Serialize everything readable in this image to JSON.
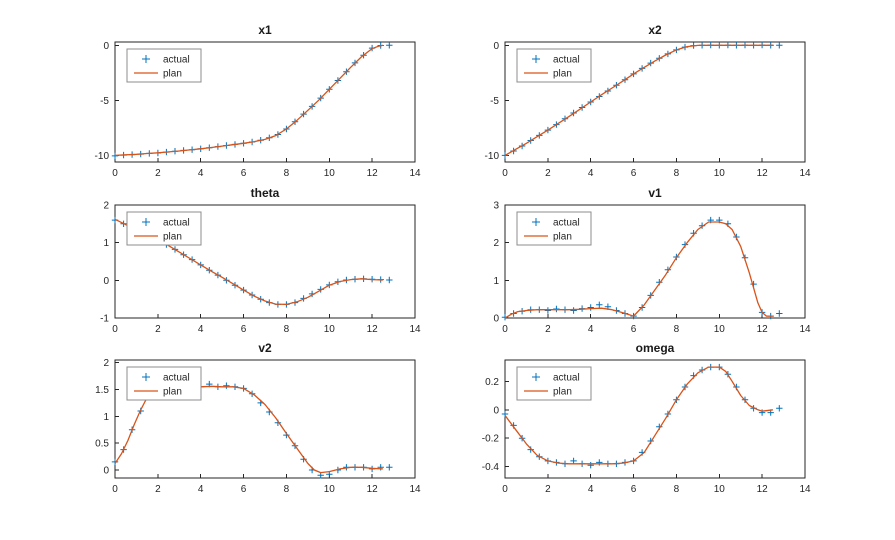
{
  "figure": {
    "background": "#ffffff"
  },
  "colors": {
    "actual": "#0072BD",
    "plan": "#D95319",
    "axis": "#262626",
    "legend_border": "#8c8c8c",
    "title": "#1a1a1a"
  },
  "chart_data": [
    {
      "type": "line",
      "title": "x1",
      "xlim": [
        0,
        14
      ],
      "ylim": [
        -10.6,
        0.3
      ],
      "xticks": [
        0,
        2,
        4,
        6,
        8,
        10,
        12,
        14
      ],
      "yticks": [
        -10,
        -5,
        0
      ],
      "legend": [
        "actual",
        "plan"
      ],
      "legend_position": "upper-left",
      "grid": false,
      "series": [
        {
          "name": "actual",
          "style": "plus",
          "color": "#0072BD",
          "x": [
            0,
            0.4,
            0.8,
            1.2,
            1.6,
            2,
            2.4,
            2.8,
            3.2,
            3.6,
            4,
            4.4,
            4.8,
            5.2,
            5.6,
            6,
            6.4,
            6.8,
            7.2,
            7.6,
            8,
            8.4,
            8.8,
            9.2,
            9.6,
            10,
            10.4,
            10.8,
            11.2,
            11.6,
            12,
            12.4,
            12.8
          ],
          "y": [
            -10.05,
            -9.97,
            -9.93,
            -9.88,
            -9.82,
            -9.78,
            -9.7,
            -9.62,
            -9.55,
            -9.48,
            -9.4,
            -9.3,
            -9.2,
            -9.1,
            -9.0,
            -8.9,
            -8.78,
            -8.62,
            -8.4,
            -8.1,
            -7.6,
            -6.95,
            -6.25,
            -5.55,
            -4.8,
            -4.0,
            -3.2,
            -2.4,
            -1.6,
            -0.9,
            -0.25,
            -0.02,
            0.0
          ]
        },
        {
          "name": "plan",
          "style": "line",
          "color": "#D95319",
          "x": [
            0,
            0.5,
            1,
            1.5,
            2,
            2.5,
            3,
            3.5,
            4,
            4.5,
            5,
            5.5,
            6,
            6.5,
            7,
            7.5,
            8,
            8.5,
            9,
            9.5,
            10,
            10.5,
            11,
            11.5,
            12,
            12.3,
            12.5
          ],
          "y": [
            -10,
            -9.95,
            -9.9,
            -9.83,
            -9.76,
            -9.68,
            -9.6,
            -9.5,
            -9.4,
            -9.28,
            -9.16,
            -9.03,
            -8.9,
            -8.75,
            -8.55,
            -8.2,
            -7.6,
            -6.8,
            -5.9,
            -5.0,
            -4.0,
            -3.0,
            -2.0,
            -1.05,
            -0.3,
            -0.08,
            0.0
          ]
        }
      ]
    },
    {
      "type": "line",
      "title": "x2",
      "xlim": [
        0,
        14
      ],
      "ylim": [
        -10.6,
        0.3
      ],
      "xticks": [
        0,
        2,
        4,
        6,
        8,
        10,
        12,
        14
      ],
      "yticks": [
        -10,
        -5,
        0
      ],
      "legend": [
        "actual",
        "plan"
      ],
      "legend_position": "upper-left",
      "grid": false,
      "series": [
        {
          "name": "actual",
          "style": "plus",
          "color": "#0072BD",
          "x": [
            0,
            0.4,
            0.8,
            1.2,
            1.6,
            2,
            2.4,
            2.8,
            3.2,
            3.6,
            4,
            4.4,
            4.8,
            5.2,
            5.6,
            6,
            6.4,
            6.8,
            7.2,
            7.6,
            8,
            8.4,
            8.8,
            9.2,
            9.6,
            10,
            10.4,
            10.8,
            11.2,
            11.6,
            12,
            12.4,
            12.8
          ],
          "y": [
            -10,
            -9.6,
            -9.15,
            -8.65,
            -8.18,
            -7.7,
            -7.2,
            -6.68,
            -6.15,
            -5.65,
            -5.15,
            -4.65,
            -4.15,
            -3.62,
            -3.12,
            -2.6,
            -2.1,
            -1.62,
            -1.18,
            -0.78,
            -0.42,
            -0.16,
            -0.03,
            0.0,
            0.02,
            0.0,
            0.02,
            0.0,
            0.02,
            0.0,
            0.02,
            0.0,
            0.0
          ]
        },
        {
          "name": "plan",
          "style": "line",
          "color": "#D95319",
          "x": [
            0,
            0.5,
            1,
            1.5,
            2,
            2.5,
            3,
            3.5,
            4,
            4.5,
            5,
            5.5,
            6,
            6.5,
            7,
            7.5,
            8,
            8.5,
            9,
            9.5,
            10,
            11,
            12,
            12.5
          ],
          "y": [
            -10,
            -9.45,
            -8.9,
            -8.3,
            -7.7,
            -7.08,
            -6.45,
            -5.8,
            -5.15,
            -4.5,
            -3.88,
            -3.25,
            -2.6,
            -2.0,
            -1.42,
            -0.88,
            -0.42,
            -0.12,
            -0.01,
            0.0,
            0.0,
            0.0,
            0.0,
            0.0
          ]
        }
      ]
    },
    {
      "type": "line",
      "title": "theta",
      "xlim": [
        0,
        14
      ],
      "ylim": [
        -1,
        2
      ],
      "xticks": [
        0,
        2,
        4,
        6,
        8,
        10,
        12,
        14
      ],
      "yticks": [
        -1,
        0,
        1,
        2
      ],
      "legend": [
        "actual",
        "plan"
      ],
      "legend_position": "upper-left",
      "grid": false,
      "series": [
        {
          "name": "actual",
          "style": "plus",
          "color": "#0072BD",
          "x": [
            0,
            0.4,
            0.8,
            1.2,
            1.6,
            2,
            2.4,
            2.8,
            3.2,
            3.6,
            4,
            4.4,
            4.8,
            5.2,
            5.6,
            6,
            6.4,
            6.8,
            7.2,
            7.6,
            8,
            8.4,
            8.8,
            9.2,
            9.6,
            10,
            10.4,
            10.8,
            11.2,
            11.6,
            12,
            12.4,
            12.8
          ],
          "y": [
            1.6,
            1.5,
            1.4,
            1.3,
            1.18,
            1.08,
            0.95,
            0.82,
            0.68,
            0.55,
            0.41,
            0.27,
            0.14,
            0.0,
            -0.13,
            -0.26,
            -0.39,
            -0.5,
            -0.59,
            -0.64,
            -0.64,
            -0.59,
            -0.48,
            -0.36,
            -0.24,
            -0.12,
            -0.04,
            0.01,
            0.03,
            0.04,
            0.03,
            0.02,
            0.01
          ]
        },
        {
          "name": "plan",
          "style": "line",
          "color": "#D95319",
          "x": [
            0,
            0.5,
            1,
            1.5,
            2,
            2.5,
            3,
            3.5,
            4,
            4.5,
            5,
            5.5,
            6,
            6.5,
            7,
            7.5,
            8,
            8.5,
            9,
            9.5,
            10,
            10.5,
            11,
            11.5,
            12,
            12.5
          ],
          "y": [
            1.62,
            1.48,
            1.35,
            1.22,
            1.08,
            0.92,
            0.75,
            0.58,
            0.41,
            0.24,
            0.08,
            -0.09,
            -0.26,
            -0.42,
            -0.55,
            -0.63,
            -0.64,
            -0.57,
            -0.45,
            -0.29,
            -0.13,
            -0.03,
            0.02,
            0.04,
            0.02,
            0.01
          ]
        }
      ]
    },
    {
      "type": "line",
      "title": "v1",
      "xlim": [
        0,
        14
      ],
      "ylim": [
        0,
        3
      ],
      "xticks": [
        0,
        2,
        4,
        6,
        8,
        10,
        12,
        14
      ],
      "yticks": [
        0,
        1,
        2,
        3
      ],
      "legend": [
        "actual",
        "plan"
      ],
      "legend_position": "upper-left",
      "grid": false,
      "series": [
        {
          "name": "actual",
          "style": "plus",
          "color": "#0072BD",
          "x": [
            0,
            0.4,
            0.8,
            1.2,
            1.6,
            2,
            2.4,
            2.8,
            3.2,
            3.6,
            4,
            4.4,
            4.8,
            5.2,
            5.6,
            6,
            6.4,
            6.8,
            7.2,
            7.6,
            8,
            8.4,
            8.8,
            9.2,
            9.6,
            10,
            10.4,
            10.8,
            11.2,
            11.6,
            12,
            12.4,
            12.8
          ],
          "y": [
            0.02,
            0.12,
            0.18,
            0.22,
            0.22,
            0.2,
            0.24,
            0.22,
            0.2,
            0.25,
            0.28,
            0.35,
            0.3,
            0.2,
            0.12,
            0.05,
            0.28,
            0.6,
            0.95,
            1.28,
            1.62,
            1.95,
            2.25,
            2.45,
            2.6,
            2.6,
            2.5,
            2.15,
            1.6,
            0.9,
            0.15,
            0.05,
            0.12
          ]
        },
        {
          "name": "plan",
          "style": "line",
          "color": "#D95319",
          "x": [
            0,
            0.3,
            0.6,
            1,
            1.5,
            2,
            2.5,
            3,
            3.5,
            4,
            4.5,
            5,
            5.5,
            6,
            6.5,
            7,
            7.5,
            8,
            8.5,
            9,
            9.5,
            10,
            10.3,
            10.6,
            11,
            11.4,
            11.8,
            12,
            12.2,
            12.5
          ],
          "y": [
            0.0,
            0.1,
            0.17,
            0.2,
            0.22,
            0.22,
            0.22,
            0.22,
            0.23,
            0.25,
            0.26,
            0.22,
            0.14,
            0.05,
            0.35,
            0.75,
            1.15,
            1.6,
            2.0,
            2.35,
            2.55,
            2.55,
            2.5,
            2.35,
            1.9,
            1.2,
            0.4,
            0.15,
            0.05,
            0.05
          ]
        }
      ]
    },
    {
      "type": "line",
      "title": "v2",
      "xlim": [
        0,
        14
      ],
      "ylim": [
        -0.15,
        2.05
      ],
      "xticks": [
        0,
        2,
        4,
        6,
        8,
        10,
        12,
        14
      ],
      "yticks": [
        0,
        0.5,
        1,
        1.5,
        2
      ],
      "legend": [
        "actual",
        "plan"
      ],
      "legend_position": "upper-left",
      "grid": false,
      "series": [
        {
          "name": "actual",
          "style": "plus",
          "color": "#0072BD",
          "x": [
            0,
            0.4,
            0.8,
            1.2,
            1.6,
            2,
            2.4,
            2.8,
            3.2,
            3.6,
            4,
            4.4,
            4.8,
            5.2,
            5.6,
            6,
            6.4,
            6.8,
            7.2,
            7.6,
            8,
            8.4,
            8.8,
            9.2,
            9.6,
            10,
            10.4,
            10.8,
            11.2,
            11.6,
            12,
            12.4,
            12.8
          ],
          "y": [
            0.15,
            0.38,
            0.75,
            1.1,
            1.42,
            1.55,
            1.57,
            1.55,
            1.55,
            1.55,
            1.55,
            1.6,
            1.55,
            1.57,
            1.55,
            1.52,
            1.42,
            1.25,
            1.08,
            0.88,
            0.65,
            0.45,
            0.2,
            0.0,
            -0.1,
            -0.08,
            0.0,
            0.05,
            0.05,
            0.05,
            0.02,
            0.05,
            0.05
          ]
        },
        {
          "name": "plan",
          "style": "line",
          "color": "#D95319",
          "x": [
            0,
            0.3,
            0.6,
            0.9,
            1.2,
            1.5,
            1.8,
            2,
            2.5,
            3,
            3.5,
            4,
            4.5,
            5,
            5.5,
            6,
            6.5,
            7,
            7.5,
            8,
            8.5,
            9,
            9.3,
            9.6,
            10,
            10.5,
            11,
            11.5,
            12,
            12.5
          ],
          "y": [
            0.12,
            0.3,
            0.55,
            0.85,
            1.12,
            1.35,
            1.5,
            1.55,
            1.56,
            1.55,
            1.55,
            1.55,
            1.56,
            1.55,
            1.55,
            1.52,
            1.4,
            1.22,
            0.97,
            0.68,
            0.4,
            0.12,
            0.0,
            -0.05,
            -0.03,
            0.02,
            0.05,
            0.05,
            0.03,
            0.02
          ]
        }
      ]
    },
    {
      "type": "line",
      "title": "omega",
      "xlim": [
        0,
        14
      ],
      "ylim": [
        -0.48,
        0.35
      ],
      "xticks": [
        0,
        2,
        4,
        6,
        8,
        10,
        12,
        14
      ],
      "yticks": [
        -0.4,
        -0.2,
        0,
        0.2
      ],
      "legend": [
        "actual",
        "plan"
      ],
      "legend_position": "upper-left",
      "grid": false,
      "series": [
        {
          "name": "actual",
          "style": "plus",
          "color": "#0072BD",
          "x": [
            0,
            0.4,
            0.8,
            1.2,
            1.6,
            2,
            2.4,
            2.8,
            3.2,
            3.6,
            4,
            4.4,
            4.8,
            5.2,
            5.6,
            6,
            6.4,
            6.8,
            7.2,
            7.6,
            8,
            8.4,
            8.8,
            9.2,
            9.6,
            10,
            10.4,
            10.8,
            11.2,
            11.6,
            12,
            12.4,
            12.8
          ],
          "y": [
            -0.03,
            -0.11,
            -0.2,
            -0.28,
            -0.33,
            -0.36,
            -0.37,
            -0.38,
            -0.36,
            -0.38,
            -0.39,
            -0.37,
            -0.38,
            -0.38,
            -0.37,
            -0.36,
            -0.3,
            -0.22,
            -0.12,
            -0.03,
            0.07,
            0.16,
            0.24,
            0.28,
            0.3,
            0.3,
            0.25,
            0.16,
            0.07,
            0.01,
            -0.02,
            -0.02,
            0.01
          ]
        },
        {
          "name": "plan",
          "style": "line",
          "color": "#D95319",
          "x": [
            0,
            0.5,
            1,
            1.5,
            2,
            2.5,
            3,
            3.5,
            4,
            4.5,
            5,
            5.5,
            6,
            6.5,
            7,
            7.5,
            8,
            8.5,
            9,
            9.5,
            10,
            10.3,
            10.6,
            11,
            11.4,
            11.8,
            12,
            12.5
          ],
          "y": [
            -0.04,
            -0.14,
            -0.24,
            -0.32,
            -0.36,
            -0.375,
            -0.38,
            -0.38,
            -0.38,
            -0.38,
            -0.38,
            -0.375,
            -0.36,
            -0.3,
            -0.18,
            -0.06,
            0.07,
            0.18,
            0.26,
            0.3,
            0.3,
            0.27,
            0.2,
            0.1,
            0.03,
            0.0,
            -0.01,
            0.0
          ]
        }
      ]
    }
  ]
}
